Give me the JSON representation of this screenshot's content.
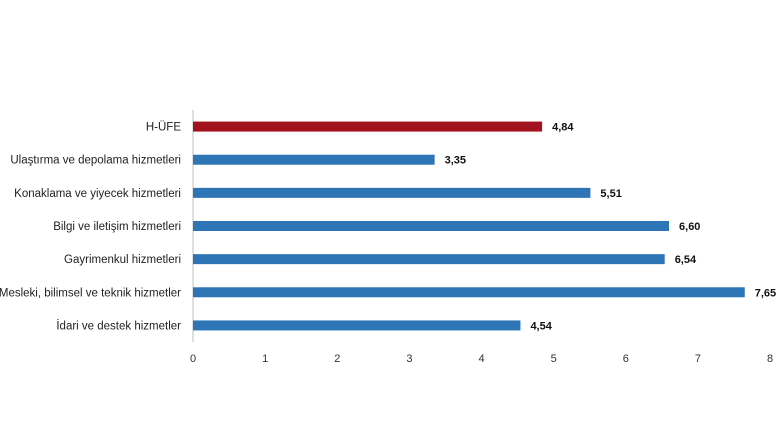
{
  "chart_data": {
    "type": "bar",
    "orientation": "horizontal",
    "categories": [
      "H-ÜFE",
      "Ulaştırma ve depolama hizmetleri",
      "Konaklama ve yiyecek hizmetleri",
      "Bilgi ve iletişim hizmetleri",
      "Gayrimenkul hizmetleri",
      "Mesleki, bilimsel ve teknik hizmetler",
      "İdari ve destek hizmetler"
    ],
    "values": [
      4.84,
      3.35,
      5.51,
      6.6,
      6.54,
      7.65,
      4.54
    ],
    "value_labels": [
      "4,84",
      "3,35",
      "5,51",
      "6,60",
      "6,54",
      "7,65",
      "4,54"
    ],
    "bar_colors": [
      "#a3121f",
      "#2e75b6",
      "#2e75b6",
      "#2e75b6",
      "#2e75b6",
      "#2e75b6",
      "#2e75b6"
    ],
    "xlim": [
      0,
      8
    ],
    "x_ticks": [
      "0",
      "1",
      "2",
      "3",
      "4",
      "5",
      "6",
      "7",
      "8"
    ],
    "grid": false,
    "legend": "none"
  }
}
